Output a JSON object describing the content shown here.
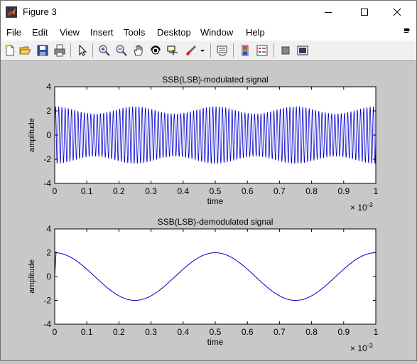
{
  "window": {
    "title": "Figure 3",
    "controls": {
      "minimize": "minimize",
      "maximize": "maximize",
      "close": "close"
    }
  },
  "menu": {
    "items": [
      "File",
      "Edit",
      "View",
      "Insert",
      "Tools",
      "Desktop",
      "Window",
      "Help"
    ]
  },
  "toolbar": {
    "icons": [
      "new-figure-icon",
      "open-file-icon",
      "save-icon",
      "print-icon",
      "edit-plot-arrow-icon",
      "zoom-in-icon",
      "zoom-out-icon",
      "pan-hand-icon",
      "rotate-3d-icon",
      "data-cursor-icon",
      "brush-icon",
      "brush-dropdown-icon",
      "link-plot-icon",
      "insert-colorbar-icon",
      "insert-legend-icon",
      "hide-plot-tools-icon",
      "show-plot-tools-icon"
    ]
  },
  "colors": {
    "line": "#0000cc",
    "figure_bg": "#c8c8c8",
    "axes_bg": "#ffffff"
  },
  "chart_data": [
    {
      "type": "line",
      "title": "SSB(LSB)-modulated signal",
      "xlabel": "time",
      "ylabel": "amplitude",
      "x_exponent": "× 10",
      "x_exponent_power": "-3",
      "xlim": [
        0,
        0.001
      ],
      "ylim": [
        -4,
        4
      ],
      "xticks": [
        "0",
        "0.1",
        "0.2",
        "0.3",
        "0.4",
        "0.5",
        "0.6",
        "0.7",
        "0.8",
        "0.9",
        "1"
      ],
      "yticks": [
        "4",
        "2",
        "0",
        "-2",
        "-4"
      ],
      "series": [
        {
          "signal": "amplitude-modulated carrier",
          "carrier_frequency_hz": 100000,
          "envelope_mean": 2.05,
          "envelope_ripple": 0.3,
          "envelope_ripple_frequency_hz": 4000,
          "t_start": 0,
          "t_end": 0.001,
          "samples": 5000
        }
      ]
    },
    {
      "type": "line",
      "title": "SSB(LSB)-demodulated signal",
      "xlabel": "time",
      "ylabel": "amplitude",
      "x_exponent": "× 10",
      "x_exponent_power": "-3",
      "xlim": [
        0,
        0.001
      ],
      "ylim": [
        -4,
        4
      ],
      "xticks": [
        "0",
        "0.1",
        "0.2",
        "0.3",
        "0.4",
        "0.5",
        "0.6",
        "0.7",
        "0.8",
        "0.9",
        "1"
      ],
      "yticks": [
        "4",
        "2",
        "0",
        "-2",
        "-4"
      ],
      "series": [
        {
          "signal": "cosine",
          "amplitude": 2,
          "frequency_hz": 2000,
          "t_start": 0,
          "t_end": 0.001,
          "samples": 400,
          "initial_rise_points": [
            [
              0,
              0
            ],
            [
              4.5e-06,
              2.1
            ]
          ]
        }
      ]
    }
  ]
}
